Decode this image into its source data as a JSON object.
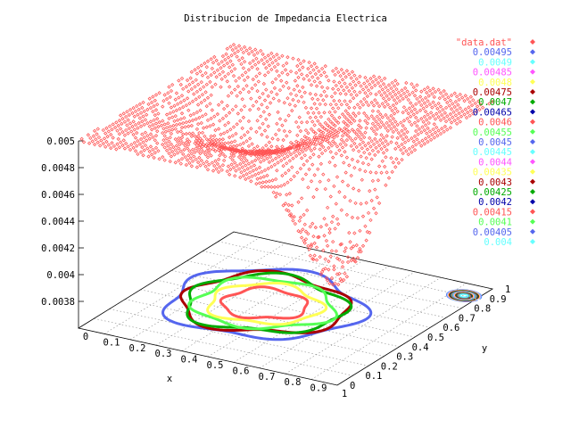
{
  "chart_data": {
    "type": "scatter",
    "title": "Distribucion de Impedancia Electrica",
    "xlabel": "x",
    "ylabel": "y",
    "x_ticks": [
      "0",
      "0.1",
      "0.2",
      "0.3",
      "0.4",
      "0.5",
      "0.6",
      "0.7",
      "0.8",
      "0.9",
      "1"
    ],
    "y_ticks": [
      "0",
      "0.1",
      "0.2",
      "0.3",
      "0.4",
      "0.5",
      "0.6",
      "0.7",
      "0.8",
      "0.9",
      "1"
    ],
    "z_ticks": [
      "0.005",
      "0.0048",
      "0.0046",
      "0.0044",
      "0.0042",
      "0.004",
      "0.0038"
    ],
    "xlim": [
      0,
      1
    ],
    "ylim": [
      0,
      1
    ],
    "zlim": [
      0.0036,
      0.005
    ],
    "grid": true,
    "legend_position": "top-right",
    "surface": {
      "name": "\"data.dat\"",
      "color": "#ff5555",
      "marker": "diamond",
      "base_z": 0.005,
      "valley_z": 0.0047,
      "low_corner_z": 0.0042
    },
    "contours": {
      "base_plane": true,
      "levels": [
        {
          "label": "0.00495",
          "value": 0.00495,
          "color": "#5566ee"
        },
        {
          "label": "0.0049",
          "value": 0.0049,
          "color": "#66ffff"
        },
        {
          "label": "0.00485",
          "value": 0.00485,
          "color": "#ff55ff"
        },
        {
          "label": "0.0048",
          "value": 0.0048,
          "color": "#ffff55"
        },
        {
          "label": "0.00475",
          "value": 0.00475,
          "color": "#aa0000"
        },
        {
          "label": "0.0047",
          "value": 0.0047,
          "color": "#00aa00"
        },
        {
          "label": "0.00465",
          "value": 0.00465,
          "color": "#0000aa"
        },
        {
          "label": "0.0046",
          "value": 0.0046,
          "color": "#ff5555"
        },
        {
          "label": "0.00455",
          "value": 0.00455,
          "color": "#55ff55"
        },
        {
          "label": "0.0045",
          "value": 0.0045,
          "color": "#5566ee"
        },
        {
          "label": "0.00445",
          "value": 0.00445,
          "color": "#66ffff"
        },
        {
          "label": "0.0044",
          "value": 0.0044,
          "color": "#ff55ff"
        },
        {
          "label": "0.00435",
          "value": 0.00435,
          "color": "#ffff55"
        },
        {
          "label": "0.0043",
          "value": 0.0043,
          "color": "#aa0000"
        },
        {
          "label": "0.00425",
          "value": 0.00425,
          "color": "#00aa00"
        },
        {
          "label": "0.0042",
          "value": 0.0042,
          "color": "#0000aa"
        },
        {
          "label": "0.00415",
          "value": 0.00415,
          "color": "#ff5555"
        },
        {
          "label": "0.0041",
          "value": 0.0041,
          "color": "#55ff55"
        },
        {
          "label": "0.00405",
          "value": 0.00405,
          "color": "#5566ee"
        },
        {
          "label": "0.004",
          "value": 0.004,
          "color": "#66ffff"
        }
      ]
    }
  }
}
